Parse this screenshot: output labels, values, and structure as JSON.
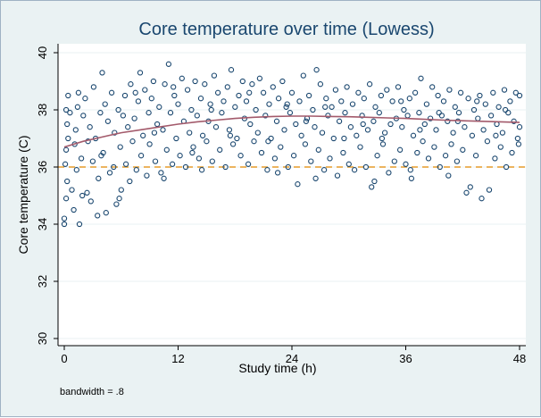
{
  "chart_data": {
    "type": "scatter",
    "title": "Core temperature over time (Lowess)",
    "xlabel": "Study time (h)",
    "ylabel": "Core temperature (C)",
    "xlim": [
      0,
      48
    ],
    "ylim": [
      30,
      40
    ],
    "xticks": [
      0,
      12,
      24,
      36,
      48
    ],
    "yticks": [
      30,
      32,
      34,
      36,
      38,
      40
    ],
    "note": "bandwidth = .8",
    "grid": true,
    "reference_line": {
      "y": 36,
      "style": "dashed",
      "color": "#e59b2a"
    },
    "colors": {
      "marker": "#1a476f",
      "lowess": "#a35a6b",
      "plot_background": "#ffffff",
      "outer_background": "#eaf2f3",
      "grid": "#eaf2f3",
      "title": "#1a476f"
    },
    "lowess_curve": {
      "x": [
        0,
        2,
        4,
        6,
        8,
        10,
        12,
        14,
        16,
        18,
        20,
        22,
        24,
        26,
        28,
        30,
        32,
        34,
        36,
        38,
        40,
        42,
        44,
        46,
        48
      ],
      "y": [
        36.7,
        36.9,
        37.05,
        37.2,
        37.3,
        37.4,
        37.5,
        37.58,
        37.64,
        37.7,
        37.74,
        37.77,
        37.78,
        37.78,
        37.77,
        37.76,
        37.74,
        37.72,
        37.7,
        37.67,
        37.64,
        37.62,
        37.6,
        37.58,
        37.56
      ]
    },
    "series": [
      {
        "name": "Core temperature",
        "points": [
          [
            0,
            34.0
          ],
          [
            0,
            34.2
          ],
          [
            0.2,
            34.9
          ],
          [
            0.3,
            35.5
          ],
          [
            0.1,
            36.1
          ],
          [
            0.2,
            36.6
          ],
          [
            0.4,
            37.0
          ],
          [
            0.3,
            37.5
          ],
          [
            0.2,
            38.0
          ],
          [
            0.4,
            38.5
          ],
          [
            0.8,
            35.2
          ],
          [
            1.0,
            34.5
          ],
          [
            1.1,
            36.8
          ],
          [
            1.2,
            37.3
          ],
          [
            1.4,
            38.1
          ],
          [
            1.5,
            38.6
          ],
          [
            1.3,
            35.9
          ],
          [
            1.6,
            34.0
          ],
          [
            1.8,
            36.3
          ],
          [
            2.0,
            37.8
          ],
          [
            2.2,
            38.4
          ],
          [
            2.4,
            35.1
          ],
          [
            2.5,
            36.9
          ],
          [
            2.7,
            37.4
          ],
          [
            2.8,
            34.8
          ],
          [
            3.0,
            36.2
          ],
          [
            3.1,
            38.8
          ],
          [
            3.3,
            37.0
          ],
          [
            3.5,
            34.3
          ],
          [
            3.6,
            35.6
          ],
          [
            3.8,
            37.9
          ],
          [
            4.0,
            39.3
          ],
          [
            4.1,
            36.5
          ],
          [
            4.3,
            38.2
          ],
          [
            4.4,
            34.4
          ],
          [
            4.6,
            37.6
          ],
          [
            4.8,
            35.8
          ],
          [
            5.0,
            38.6
          ],
          [
            5.2,
            36.0
          ],
          [
            5.3,
            37.2
          ],
          [
            5.5,
            34.7
          ],
          [
            5.7,
            38.0
          ],
          [
            5.9,
            36.7
          ],
          [
            6.0,
            35.2
          ],
          [
            6.2,
            37.8
          ],
          [
            6.4,
            38.5
          ],
          [
            6.5,
            36.1
          ],
          [
            6.7,
            37.4
          ],
          [
            6.9,
            35.5
          ],
          [
            7.0,
            38.9
          ],
          [
            7.2,
            36.9
          ],
          [
            7.4,
            37.7
          ],
          [
            7.6,
            35.9
          ],
          [
            7.8,
            38.3
          ],
          [
            8.0,
            39.3
          ],
          [
            8.1,
            36.4
          ],
          [
            8.3,
            37.1
          ],
          [
            8.5,
            38.7
          ],
          [
            8.7,
            35.7
          ],
          [
            8.9,
            37.9
          ],
          [
            9.0,
            36.8
          ],
          [
            9.2,
            38.4
          ],
          [
            9.4,
            39.0
          ],
          [
            9.6,
            36.2
          ],
          [
            9.8,
            37.5
          ],
          [
            10.0,
            38.1
          ],
          [
            10.2,
            35.8
          ],
          [
            10.4,
            37.3
          ],
          [
            10.6,
            38.9
          ],
          [
            10.8,
            36.6
          ],
          [
            11.0,
            39.6
          ],
          [
            11.2,
            37.9
          ],
          [
            11.4,
            36.1
          ],
          [
            11.6,
            38.5
          ],
          [
            11.8,
            37.0
          ],
          [
            12.0,
            38.2
          ],
          [
            12.2,
            36.4
          ],
          [
            12.4,
            39.1
          ],
          [
            12.6,
            37.6
          ],
          [
            12.8,
            36.0
          ],
          [
            13.0,
            38.7
          ],
          [
            13.2,
            37.2
          ],
          [
            13.4,
            38.0
          ],
          [
            13.6,
            36.7
          ],
          [
            13.8,
            39.0
          ],
          [
            14.0,
            37.8
          ],
          [
            14.2,
            36.3
          ],
          [
            14.4,
            38.4
          ],
          [
            14.6,
            37.1
          ],
          [
            14.8,
            38.9
          ],
          [
            15.0,
            36.9
          ],
          [
            15.2,
            37.6
          ],
          [
            15.4,
            38.2
          ],
          [
            15.6,
            36.2
          ],
          [
            15.8,
            39.2
          ],
          [
            16.0,
            37.4
          ],
          [
            16.2,
            38.6
          ],
          [
            16.4,
            36.6
          ],
          [
            16.6,
            37.9
          ],
          [
            16.8,
            38.3
          ],
          [
            17.0,
            36.0
          ],
          [
            17.2,
            38.8
          ],
          [
            17.4,
            37.3
          ],
          [
            17.6,
            39.4
          ],
          [
            17.8,
            36.8
          ],
          [
            18.0,
            38.1
          ],
          [
            18.2,
            37.0
          ],
          [
            18.4,
            38.5
          ],
          [
            18.6,
            36.4
          ],
          [
            18.8,
            39.0
          ],
          [
            19.0,
            37.7
          ],
          [
            19.2,
            38.3
          ],
          [
            19.4,
            36.1
          ],
          [
            19.6,
            37.5
          ],
          [
            19.8,
            38.9
          ],
          [
            20.0,
            36.9
          ],
          [
            20.2,
            38.0
          ],
          [
            20.4,
            37.2
          ],
          [
            20.6,
            39.1
          ],
          [
            20.8,
            36.5
          ],
          [
            21.0,
            38.6
          ],
          [
            21.2,
            37.8
          ],
          [
            21.4,
            35.9
          ],
          [
            21.6,
            38.2
          ],
          [
            21.8,
            37.0
          ],
          [
            22.0,
            38.8
          ],
          [
            22.2,
            36.3
          ],
          [
            22.4,
            37.6
          ],
          [
            22.6,
            38.4
          ],
          [
            22.8,
            36.7
          ],
          [
            23.0,
            39.0
          ],
          [
            23.2,
            37.3
          ],
          [
            23.4,
            38.1
          ],
          [
            23.6,
            36.0
          ],
          [
            23.8,
            37.9
          ],
          [
            24.0,
            38.6
          ],
          [
            24.2,
            36.4
          ],
          [
            24.4,
            37.5
          ],
          [
            24.6,
            35.4
          ],
          [
            24.8,
            38.3
          ],
          [
            25.0,
            37.1
          ],
          [
            25.2,
            39.2
          ],
          [
            25.4,
            36.8
          ],
          [
            25.6,
            37.7
          ],
          [
            25.8,
            38.5
          ],
          [
            26.0,
            36.2
          ],
          [
            26.2,
            38.0
          ],
          [
            26.4,
            37.4
          ],
          [
            26.6,
            39.4
          ],
          [
            26.8,
            36.6
          ],
          [
            27.0,
            38.9
          ],
          [
            27.2,
            37.2
          ],
          [
            27.4,
            35.9
          ],
          [
            27.6,
            38.4
          ],
          [
            27.8,
            37.8
          ],
          [
            28.0,
            36.3
          ],
          [
            28.2,
            38.1
          ],
          [
            28.4,
            37.0
          ],
          [
            28.6,
            38.7
          ],
          [
            28.8,
            35.7
          ],
          [
            29.0,
            37.6
          ],
          [
            29.2,
            38.3
          ],
          [
            29.4,
            36.5
          ],
          [
            29.6,
            37.9
          ],
          [
            29.8,
            38.8
          ],
          [
            30.0,
            36.1
          ],
          [
            30.2,
            37.4
          ],
          [
            30.4,
            38.2
          ],
          [
            30.6,
            35.9
          ],
          [
            30.8,
            37.1
          ],
          [
            31.0,
            38.6
          ],
          [
            31.2,
            36.7
          ],
          [
            31.4,
            37.8
          ],
          [
            31.6,
            38.4
          ],
          [
            31.8,
            36.0
          ],
          [
            32.0,
            37.3
          ],
          [
            32.2,
            38.9
          ],
          [
            32.4,
            35.3
          ],
          [
            32.6,
            37.6
          ],
          [
            32.8,
            38.1
          ],
          [
            33.0,
            36.4
          ],
          [
            33.2,
            37.9
          ],
          [
            33.4,
            38.5
          ],
          [
            33.6,
            36.8
          ],
          [
            33.8,
            37.2
          ],
          [
            34.0,
            38.7
          ],
          [
            34.2,
            35.8
          ],
          [
            34.4,
            37.5
          ],
          [
            34.6,
            38.3
          ],
          [
            34.8,
            36.2
          ],
          [
            35.0,
            37.7
          ],
          [
            35.2,
            38.8
          ],
          [
            35.4,
            36.6
          ],
          [
            35.6,
            37.4
          ],
          [
            35.8,
            38.0
          ],
          [
            36.0,
            36.1
          ],
          [
            36.2,
            37.8
          ],
          [
            36.4,
            38.4
          ],
          [
            36.6,
            35.6
          ],
          [
            36.8,
            37.1
          ],
          [
            37.0,
            38.6
          ],
          [
            37.2,
            36.5
          ],
          [
            37.4,
            37.9
          ],
          [
            37.6,
            39.1
          ],
          [
            37.8,
            36.9
          ],
          [
            38.0,
            37.5
          ],
          [
            38.2,
            38.2
          ],
          [
            38.4,
            36.3
          ],
          [
            38.6,
            37.7
          ],
          [
            38.8,
            38.8
          ],
          [
            39.0,
            36.7
          ],
          [
            39.2,
            37.3
          ],
          [
            39.4,
            38.5
          ],
          [
            39.6,
            36.0
          ],
          [
            39.8,
            37.8
          ],
          [
            40.0,
            38.3
          ],
          [
            40.2,
            36.4
          ],
          [
            40.4,
            37.6
          ],
          [
            40.6,
            38.7
          ],
          [
            40.8,
            36.8
          ],
          [
            41.0,
            37.2
          ],
          [
            41.2,
            38.1
          ],
          [
            41.4,
            36.2
          ],
          [
            41.6,
            37.9
          ],
          [
            41.8,
            38.6
          ],
          [
            42.0,
            36.6
          ],
          [
            42.2,
            37.4
          ],
          [
            42.4,
            35.1
          ],
          [
            42.6,
            38.4
          ],
          [
            42.8,
            35.3
          ],
          [
            43.0,
            37.1
          ],
          [
            43.2,
            38.0
          ],
          [
            43.4,
            36.4
          ],
          [
            43.6,
            37.7
          ],
          [
            43.8,
            38.5
          ],
          [
            44.0,
            34.9
          ],
          [
            44.2,
            37.3
          ],
          [
            44.4,
            38.2
          ],
          [
            44.6,
            36.9
          ],
          [
            44.8,
            35.2
          ],
          [
            45.0,
            37.8
          ],
          [
            45.2,
            38.6
          ],
          [
            45.4,
            36.3
          ],
          [
            45.6,
            37.5
          ],
          [
            45.8,
            38.1
          ],
          [
            46.0,
            36.7
          ],
          [
            46.2,
            37.2
          ],
          [
            46.4,
            38.7
          ],
          [
            46.6,
            36.0
          ],
          [
            46.8,
            37.9
          ],
          [
            47.0,
            38.3
          ],
          [
            47.2,
            36.5
          ],
          [
            47.4,
            37.6
          ],
          [
            47.6,
            38.6
          ],
          [
            47.8,
            37.0
          ],
          [
            48.0,
            38.5
          ],
          [
            48.0,
            37.4
          ],
          [
            47.9,
            36.8
          ],
          [
            0.6,
            37.9
          ],
          [
            1.9,
            35.0
          ],
          [
            3.9,
            36.4
          ],
          [
            5.8,
            34.9
          ],
          [
            7.5,
            38.6
          ],
          [
            9.5,
            37.2
          ],
          [
            11.5,
            38.8
          ],
          [
            13.5,
            36.5
          ],
          [
            15.5,
            38.0
          ],
          [
            17.5,
            37.1
          ],
          [
            19.5,
            38.6
          ],
          [
            21.5,
            36.9
          ],
          [
            23.5,
            38.2
          ],
          [
            25.5,
            37.6
          ],
          [
            27.5,
            38.1
          ],
          [
            29.5,
            37.0
          ],
          [
            31.5,
            37.5
          ],
          [
            33.5,
            37.0
          ],
          [
            35.5,
            38.3
          ],
          [
            37.5,
            37.3
          ],
          [
            39.5,
            37.9
          ],
          [
            41.5,
            37.6
          ],
          [
            43.5,
            38.3
          ],
          [
            45.5,
            37.1
          ],
          [
            46.5,
            38.0
          ],
          [
            10.5,
            35.6
          ],
          [
            14.5,
            35.9
          ],
          [
            22.5,
            35.8
          ],
          [
            26.5,
            35.6
          ],
          [
            32.7,
            35.5
          ],
          [
            36.5,
            35.9
          ],
          [
            40.5,
            35.7
          ]
        ]
      }
    ]
  }
}
